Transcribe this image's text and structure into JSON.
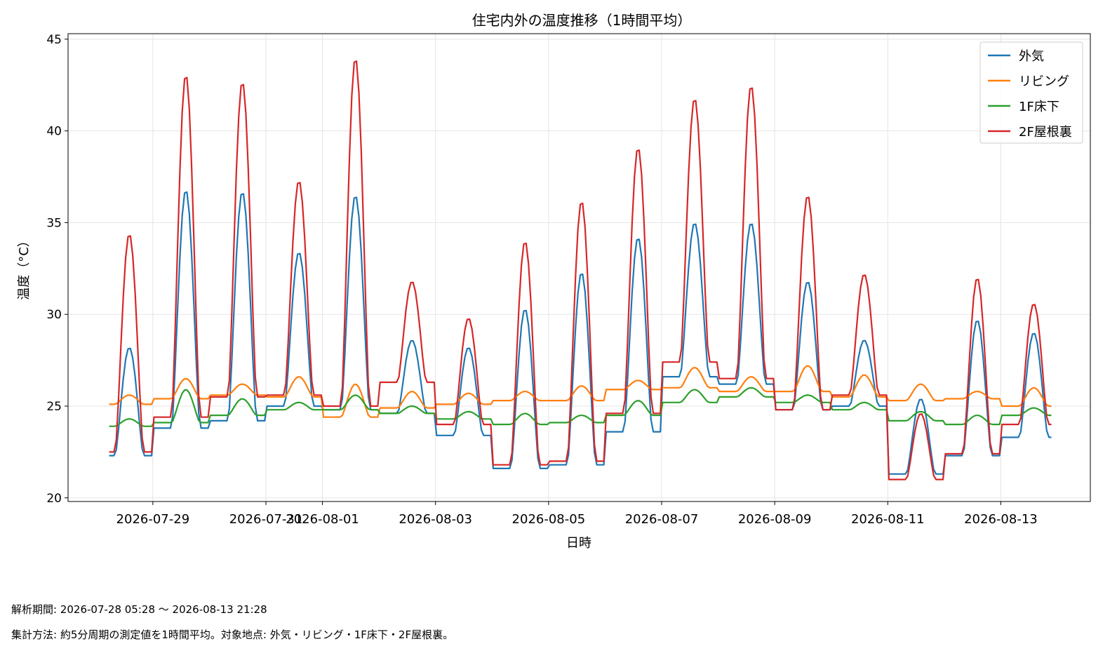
{
  "chart_data": {
    "type": "line",
    "title": "住宅内外の温度推移（1時間平均）",
    "xlabel": "日時",
    "ylabel": "温度（°C）",
    "x_range": [
      "2026-07-28 05:28",
      "2026-08-13 21:28"
    ],
    "xlim": [
      "2026-07-27 12:00",
      "2026-08-14 14:00"
    ],
    "ylim": [
      19.8,
      45.3
    ],
    "yticks": [
      20,
      25,
      30,
      35,
      40,
      45
    ],
    "xticks": [
      "2026-07-29",
      "2026-07-31",
      "2026-08-01",
      "2026-08-03",
      "2026-08-05",
      "2026-08-07",
      "2026-08-09",
      "2026-08-11",
      "2026-08-13"
    ],
    "grid": true,
    "legend": "top-right",
    "series": [
      {
        "name": "外気",
        "color": "#1f77b4",
        "daily": [
          {
            "date": "2026-07-28",
            "min": 22.3,
            "max": 28.2
          },
          {
            "date": "2026-07-29",
            "min": 23.8,
            "max": 36.8
          },
          {
            "date": "2026-07-30",
            "min": 24.2,
            "max": 36.7
          },
          {
            "date": "2026-07-31",
            "min": 25.0,
            "max": 33.4
          },
          {
            "date": "2026-08-01",
            "min": 24.8,
            "max": 36.5
          },
          {
            "date": "2026-08-02",
            "min": 24.6,
            "max": 28.6
          },
          {
            "date": "2026-08-03",
            "min": 23.4,
            "max": 28.2
          },
          {
            "date": "2026-08-04",
            "min": 21.6,
            "max": 30.3
          },
          {
            "date": "2026-08-05",
            "min": 21.8,
            "max": 32.3
          },
          {
            "date": "2026-08-06",
            "min": 23.6,
            "max": 34.2
          },
          {
            "date": "2026-08-07",
            "min": 26.6,
            "max": 35.0
          },
          {
            "date": "2026-08-08",
            "min": 26.2,
            "max": 35.0
          },
          {
            "date": "2026-08-09",
            "min": 24.8,
            "max": 31.8
          },
          {
            "date": "2026-08-10",
            "min": 25.0,
            "max": 28.6
          },
          {
            "date": "2026-08-11",
            "min": 21.3,
            "max": 25.4
          },
          {
            "date": "2026-08-12",
            "min": 22.3,
            "max": 29.7
          },
          {
            "date": "2026-08-13",
            "min": 23.3,
            "max": 29.0
          }
        ]
      },
      {
        "name": "リビング",
        "color": "#ff7f0e",
        "daily": [
          {
            "date": "2026-07-28",
            "min": 25.1,
            "max": 25.6
          },
          {
            "date": "2026-07-29",
            "min": 25.4,
            "max": 26.5
          },
          {
            "date": "2026-07-30",
            "min": 25.6,
            "max": 26.2
          },
          {
            "date": "2026-07-31",
            "min": 25.5,
            "max": 26.6
          },
          {
            "date": "2026-08-01",
            "min": 24.4,
            "max": 26.2
          },
          {
            "date": "2026-08-02",
            "min": 24.9,
            "max": 25.8
          },
          {
            "date": "2026-08-03",
            "min": 25.1,
            "max": 25.7
          },
          {
            "date": "2026-08-04",
            "min": 25.3,
            "max": 25.8
          },
          {
            "date": "2026-08-05",
            "min": 25.3,
            "max": 26.1
          },
          {
            "date": "2026-08-06",
            "min": 25.9,
            "max": 26.4
          },
          {
            "date": "2026-08-07",
            "min": 26.0,
            "max": 27.1
          },
          {
            "date": "2026-08-08",
            "min": 25.8,
            "max": 26.6
          },
          {
            "date": "2026-08-09",
            "min": 25.8,
            "max": 27.2
          },
          {
            "date": "2026-08-10",
            "min": 25.5,
            "max": 26.7
          },
          {
            "date": "2026-08-11",
            "min": 25.3,
            "max": 26.2
          },
          {
            "date": "2026-08-12",
            "min": 25.4,
            "max": 25.8
          },
          {
            "date": "2026-08-13",
            "min": 25.0,
            "max": 26.0
          }
        ]
      },
      {
        "name": "1F床下",
        "color": "#2ca02c",
        "daily": [
          {
            "date": "2026-07-28",
            "min": 23.9,
            "max": 24.3
          },
          {
            "date": "2026-07-29",
            "min": 24.1,
            "max": 25.9
          },
          {
            "date": "2026-07-30",
            "min": 24.5,
            "max": 25.4
          },
          {
            "date": "2026-07-31",
            "min": 24.8,
            "max": 25.2
          },
          {
            "date": "2026-08-01",
            "min": 24.8,
            "max": 25.6
          },
          {
            "date": "2026-08-02",
            "min": 24.6,
            "max": 25.0
          },
          {
            "date": "2026-08-03",
            "min": 24.3,
            "max": 24.7
          },
          {
            "date": "2026-08-04",
            "min": 24.0,
            "max": 24.6
          },
          {
            "date": "2026-08-05",
            "min": 24.1,
            "max": 24.5
          },
          {
            "date": "2026-08-06",
            "min": 24.5,
            "max": 25.3
          },
          {
            "date": "2026-08-07",
            "min": 25.2,
            "max": 25.9
          },
          {
            "date": "2026-08-08",
            "min": 25.5,
            "max": 26.0
          },
          {
            "date": "2026-08-09",
            "min": 25.2,
            "max": 25.6
          },
          {
            "date": "2026-08-10",
            "min": 24.8,
            "max": 25.2
          },
          {
            "date": "2026-08-11",
            "min": 24.2,
            "max": 24.7
          },
          {
            "date": "2026-08-12",
            "min": 24.0,
            "max": 24.5
          },
          {
            "date": "2026-08-13",
            "min": 24.5,
            "max": 24.9
          }
        ]
      },
      {
        "name": "2F屋根裏",
        "color": "#d62728",
        "daily": [
          {
            "date": "2026-07-28",
            "min": 22.5,
            "max": 34.4
          },
          {
            "date": "2026-07-29",
            "min": 24.4,
            "max": 43.1
          },
          {
            "date": "2026-07-30",
            "min": 25.5,
            "max": 42.7
          },
          {
            "date": "2026-07-31",
            "min": 25.6,
            "max": 37.3
          },
          {
            "date": "2026-08-01",
            "min": 25.0,
            "max": 44.0
          },
          {
            "date": "2026-08-02",
            "min": 26.3,
            "max": 31.8
          },
          {
            "date": "2026-08-03",
            "min": 24.0,
            "max": 29.8
          },
          {
            "date": "2026-08-04",
            "min": 21.8,
            "max": 34.0
          },
          {
            "date": "2026-08-05",
            "min": 22.0,
            "max": 36.2
          },
          {
            "date": "2026-08-06",
            "min": 24.6,
            "max": 39.1
          },
          {
            "date": "2026-08-07",
            "min": 27.4,
            "max": 41.8
          },
          {
            "date": "2026-08-08",
            "min": 26.5,
            "max": 42.5
          },
          {
            "date": "2026-08-09",
            "min": 24.8,
            "max": 36.5
          },
          {
            "date": "2026-08-10",
            "min": 25.6,
            "max": 32.2
          },
          {
            "date": "2026-08-11",
            "min": 21.0,
            "max": 24.6
          },
          {
            "date": "2026-08-12",
            "min": 22.4,
            "max": 32.0
          },
          {
            "date": "2026-08-13",
            "min": 24.0,
            "max": 30.6
          }
        ]
      }
    ]
  },
  "captions": {
    "period": "解析期間: 2026-07-28 05:28 〜 2026-08-13 21:28",
    "method": "集計方法: 約5分周期の測定値を1時間平均。対象地点: 外気・リビング・1F床下・2F屋根裏。"
  }
}
